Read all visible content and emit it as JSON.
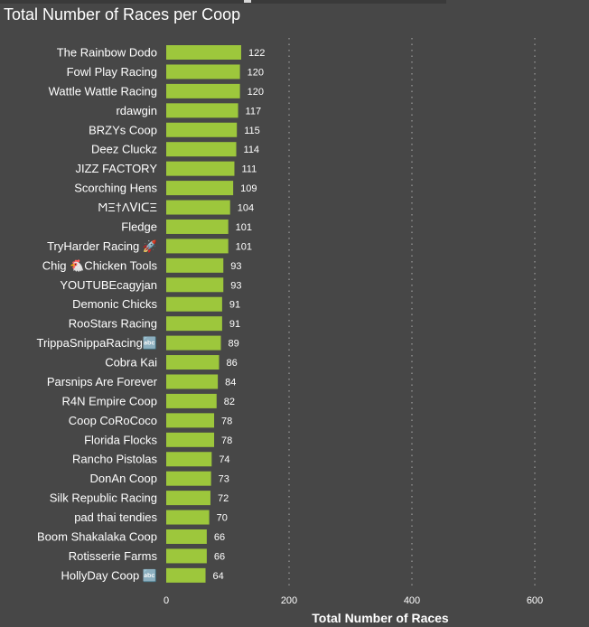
{
  "colors": {
    "background": "#474747",
    "bar": "#9dc73c",
    "text": "#ffffff",
    "gridline": "#8a8a8a"
  },
  "chart_data": {
    "type": "bar",
    "orientation": "horizontal",
    "title": "Total Number of Races per Coop",
    "xlabel": "Total Number of Races",
    "ylabel": "",
    "xlim": [
      0,
      680
    ],
    "xticks": [
      0,
      200,
      400,
      600
    ],
    "grid": "vertical dotted",
    "data_labels": true,
    "categories": [
      "The Rainbow Dodo",
      "Fowl Play Racing",
      "Wattle Wattle Racing",
      "rdawgin",
      "BRZYs Coop",
      "Deez Cluckz",
      "JIZZ FACTORY",
      "Scorching Hens",
      "ϺΞ†ΛⅤIᑕΞ",
      "Fledge",
      "TryHarder Racing 🚀",
      "Chig 🐔Chicken Tools",
      "YOUTUBEcagyjan",
      "Demonic Chicks",
      "RooStars Racing",
      "TrippaSnippaRacing🔤",
      "Cobra Kai",
      "Parsnips Are Forever",
      "R4N Empire Coop",
      "Coop CoRoCoco",
      "Florida Flocks",
      "Rancho Pistolas",
      "DonAn Coop",
      "Silk Republic Racing",
      "pad thai tendies",
      "Boom Shakalaka Coop",
      "Rotisserie Farms",
      "HollyDay Coop 🔤"
    ],
    "values": [
      122,
      120,
      120,
      117,
      115,
      114,
      111,
      109,
      104,
      101,
      101,
      93,
      93,
      91,
      91,
      89,
      86,
      84,
      82,
      78,
      78,
      74,
      73,
      72,
      70,
      66,
      66,
      64
    ]
  }
}
